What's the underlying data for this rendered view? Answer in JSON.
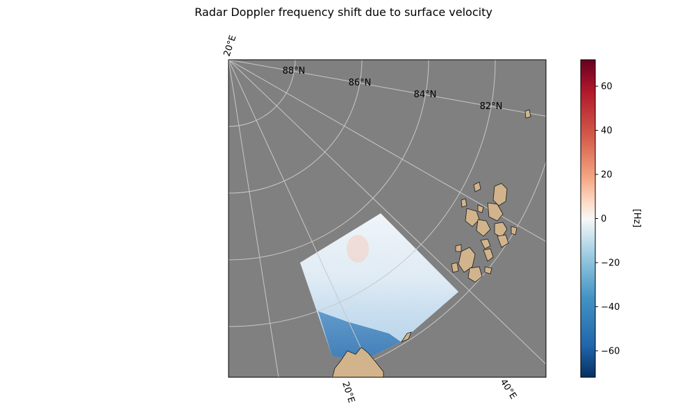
{
  "chart_data": {
    "type": "heatmap",
    "title": "Radar Doppler frequency shift due to surface velocity",
    "projection": "polar stereographic (north)",
    "background_color": "#808080",
    "land_color": "#D2B48C",
    "grid": true,
    "latitude_labels": [
      "88°N",
      "86°N",
      "84°N",
      "82°N"
    ],
    "longitude_labels": [
      "20°E",
      "20°E",
      "40°E"
    ],
    "colorbar": {
      "label": "[Hz]",
      "colormap": "RdBu_r",
      "range": [
        -72,
        72
      ],
      "ticks": [
        60,
        40,
        20,
        0,
        -20,
        -40,
        -60
      ],
      "tick_labels": [
        "60",
        "40",
        "20",
        "0",
        "−20",
        "−40",
        "−60"
      ]
    },
    "field_description": {
      "upper_region_values_hz": [
        -10,
        5
      ],
      "lower_region_values_hz": [
        -60,
        -40
      ]
    }
  }
}
